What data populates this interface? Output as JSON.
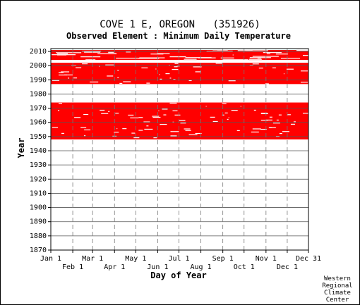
{
  "chart_data": {
    "type": "heatmap",
    "title": "COVE 1 E, OREGON   (351926)",
    "subtitle": "Observed Element : Minimum Daily Temperature",
    "xlabel": "Day of Year",
    "ylabel": "Year",
    "x_ticks_upper": [
      "Jan 1",
      "Mar 1",
      "May 1",
      "Jul 1",
      "Sep 1",
      "Nov 1",
      "Dec 31"
    ],
    "x_ticks_upper_days": [
      1,
      60,
      121,
      182,
      244,
      305,
      365
    ],
    "x_ticks_lower": [
      "Feb 1",
      "Apr 1",
      "Jun 1",
      "Aug 1",
      "Oct 1",
      "Dec 1"
    ],
    "x_ticks_lower_days": [
      32,
      91,
      152,
      213,
      274,
      335
    ],
    "xlim": [
      1,
      365
    ],
    "ylim": [
      1870,
      2012
    ],
    "y_ticks": [
      1870,
      1880,
      1890,
      1900,
      1910,
      1920,
      1930,
      1940,
      1950,
      1960,
      1970,
      1980,
      1990,
      2000,
      2010
    ],
    "grid": true,
    "color": "#ff0000",
    "data_periods": [
      {
        "start_year": 1948,
        "end_year": 1973,
        "status": "mostly observed"
      },
      {
        "start_year": 1987,
        "end_year": 2001,
        "status": "mostly observed"
      },
      {
        "start_year": 2004,
        "end_year": 2010,
        "status": "partially observed"
      }
    ],
    "credit": [
      "Western",
      "Regional",
      "Climate",
      "Center"
    ]
  }
}
